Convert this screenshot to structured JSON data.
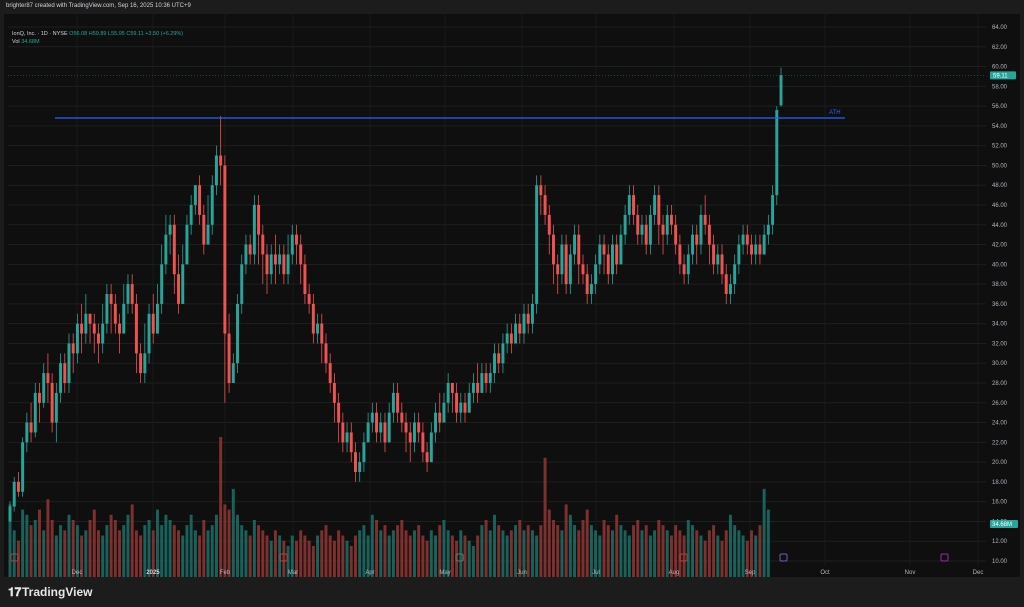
{
  "header": {
    "created_by": "brighter87 created with TradingView.com, Sep 16, 2025 10:36 UTC+9"
  },
  "legend": {
    "symbol": "IonQ, Inc. · 1D · NYSE",
    "ohlc": "O56.08 H59.89 L55.95 C59.11 +3.50 (+6.29%)",
    "volume_label": "Vol",
    "volume_value": "34.68M"
  },
  "price_badge": "59.11",
  "volume_badge": "34.68M",
  "ath_label": "ATH",
  "footer": {
    "logo_text": "TradingView"
  },
  "colors": {
    "up": "#26a69a",
    "down": "#ef5350",
    "ath_line": "#2962ff",
    "background": "#0f0f0f"
  },
  "chart_data": {
    "type": "candlestick",
    "y_ticks": [
      "64.00",
      "62.00",
      "60.00",
      "58.00",
      "56.00",
      "54.00",
      "52.00",
      "50.00",
      "48.00",
      "46.00",
      "44.00",
      "42.00",
      "40.00",
      "38.00",
      "36.00",
      "34.00",
      "32.00",
      "30.00",
      "28.00",
      "26.00",
      "24.00",
      "22.00",
      "20.00",
      "18.00",
      "16.00",
      "14.00",
      "12.00",
      "10.00"
    ],
    "y_range": [
      10,
      64
    ],
    "x_ticks": [
      {
        "label": "Dec",
        "bold": false
      },
      {
        "label": "2025",
        "bold": true
      },
      {
        "label": "Feb",
        "bold": false
      },
      {
        "label": "Mar",
        "bold": false
      },
      {
        "label": "Apr",
        "bold": false
      },
      {
        "label": "May",
        "bold": false
      },
      {
        "label": "Jun",
        "bold": false
      },
      {
        "label": "Jul",
        "bold": false
      },
      {
        "label": "Aug",
        "bold": false
      },
      {
        "label": "Sep",
        "bold": false
      },
      {
        "label": "Oct",
        "bold": false
      },
      {
        "label": "Nov",
        "bold": false
      },
      {
        "label": "Dec",
        "bold": false
      }
    ],
    "ath_level": 54.8,
    "last_price": 59.11,
    "candles": [
      [
        14,
        15.5,
        14,
        16
      ],
      [
        15.5,
        18,
        15,
        18.5
      ],
      [
        18,
        17,
        16.5,
        19
      ],
      [
        17,
        22,
        16.5,
        22.5
      ],
      [
        22,
        24,
        21,
        25
      ],
      [
        24,
        23,
        22,
        26
      ],
      [
        23,
        27,
        22.5,
        28
      ],
      [
        27,
        26,
        24,
        28
      ],
      [
        26,
        29,
        25.5,
        30
      ],
      [
        29,
        28,
        26,
        31
      ],
      [
        28,
        24,
        23,
        29
      ],
      [
        24,
        27,
        22,
        28
      ],
      [
        27,
        30,
        26,
        31
      ],
      [
        30,
        28,
        27,
        31
      ],
      [
        28,
        32,
        27,
        33
      ],
      [
        32,
        31,
        29,
        33
      ],
      [
        31,
        34,
        30,
        35
      ],
      [
        34,
        33,
        31,
        36
      ],
      [
        33,
        35,
        32,
        37
      ],
      [
        35,
        34,
        32,
        35
      ],
      [
        34,
        33,
        31,
        35
      ],
      [
        33,
        32,
        30,
        34
      ],
      [
        32,
        34,
        31,
        36
      ],
      [
        34,
        37,
        33,
        38
      ],
      [
        37,
        36,
        33,
        38
      ],
      [
        36,
        34,
        33,
        37
      ],
      [
        34,
        33,
        31,
        35
      ],
      [
        33,
        36,
        33,
        38
      ],
      [
        36,
        38,
        35,
        39
      ],
      [
        38,
        36,
        35,
        39
      ],
      [
        36,
        31,
        29,
        37
      ],
      [
        31,
        29,
        28,
        32
      ],
      [
        29,
        31,
        28,
        34
      ],
      [
        31,
        35,
        30,
        36
      ],
      [
        35,
        33,
        32,
        37
      ],
      [
        33,
        36,
        33,
        38
      ],
      [
        36,
        40,
        35,
        42
      ],
      [
        40,
        43,
        39,
        45
      ],
      [
        43,
        44,
        41,
        45
      ],
      [
        44,
        39,
        37,
        45
      ],
      [
        39,
        36,
        35,
        41
      ],
      [
        36,
        40,
        36,
        42
      ],
      [
        40,
        44,
        40,
        45
      ],
      [
        44,
        46,
        43,
        47
      ],
      [
        46,
        48,
        45,
        48
      ],
      [
        48,
        45,
        44,
        49
      ],
      [
        45,
        42,
        41,
        46
      ],
      [
        42,
        44,
        42,
        47
      ],
      [
        44,
        48,
        43,
        49
      ],
      [
        48,
        51,
        47,
        52
      ],
      [
        51,
        50,
        48,
        55
      ],
      [
        50,
        33,
        26,
        51
      ],
      [
        33,
        28,
        27,
        35
      ],
      [
        28,
        30,
        28,
        31
      ],
      [
        30,
        36,
        29,
        37
      ],
      [
        36,
        40,
        35,
        41
      ],
      [
        40,
        42,
        39,
        43
      ],
      [
        42,
        41,
        40,
        43
      ],
      [
        41,
        46,
        40,
        47
      ],
      [
        46,
        43,
        40,
        47
      ],
      [
        43,
        41,
        38,
        44
      ],
      [
        41,
        39,
        37,
        42
      ],
      [
        39,
        41,
        38,
        42
      ],
      [
        41,
        40,
        38,
        43
      ],
      [
        40,
        41,
        39,
        42
      ],
      [
        41,
        39,
        38,
        42
      ],
      [
        39,
        41,
        38,
        43
      ],
      [
        41,
        43,
        40,
        44
      ],
      [
        43,
        42,
        40,
        44
      ],
      [
        42,
        40,
        38,
        43
      ],
      [
        40,
        37,
        36,
        41
      ],
      [
        37,
        36,
        35,
        38
      ],
      [
        36,
        33,
        32,
        37
      ],
      [
        33,
        34,
        32,
        35
      ],
      [
        34,
        32,
        30,
        35
      ],
      [
        32,
        30,
        29,
        33
      ],
      [
        30,
        28,
        27,
        31
      ],
      [
        28,
        26,
        24,
        29
      ],
      [
        26,
        24,
        22,
        27
      ],
      [
        24,
        22,
        21,
        25
      ],
      [
        22,
        23,
        21,
        24
      ],
      [
        23,
        21,
        20,
        24
      ],
      [
        21,
        19,
        18,
        22
      ],
      [
        19,
        20,
        18,
        21
      ],
      [
        20,
        22,
        19,
        23
      ],
      [
        22,
        24,
        22,
        25
      ],
      [
        24,
        25,
        23,
        26
      ],
      [
        25,
        23,
        22,
        26
      ],
      [
        23,
        24,
        22,
        25
      ],
      [
        24,
        22,
        21,
        25
      ],
      [
        22,
        25,
        22,
        26
      ],
      [
        25,
        27,
        24,
        28
      ],
      [
        27,
        25,
        24,
        28
      ],
      [
        25,
        24,
        23,
        26
      ],
      [
        24,
        23,
        21,
        25
      ],
      [
        23,
        22,
        20,
        24
      ],
      [
        22,
        24,
        21,
        25
      ],
      [
        24,
        23,
        22,
        25
      ],
      [
        23,
        21,
        20,
        24
      ],
      [
        21,
        20,
        19,
        22
      ],
      [
        20,
        23,
        20,
        24
      ],
      [
        23,
        25,
        22,
        26
      ],
      [
        25,
        24,
        23,
        27
      ],
      [
        24,
        26,
        24,
        27
      ],
      [
        26,
        28,
        25,
        29
      ],
      [
        28,
        27,
        25,
        28
      ],
      [
        27,
        25,
        24,
        28
      ],
      [
        25,
        26,
        24,
        27
      ],
      [
        26,
        25,
        24,
        27
      ],
      [
        25,
        27,
        25,
        28
      ],
      [
        27,
        28,
        26,
        29
      ],
      [
        28,
        27,
        26,
        30
      ],
      [
        27,
        29,
        27,
        30
      ],
      [
        29,
        28,
        27,
        30
      ],
      [
        28,
        29,
        27,
        30
      ],
      [
        29,
        31,
        28,
        32
      ],
      [
        31,
        30,
        29,
        32
      ],
      [
        30,
        32,
        29,
        33
      ],
      [
        32,
        33,
        31,
        34
      ],
      [
        33,
        32,
        31,
        34
      ],
      [
        32,
        34,
        32,
        35
      ],
      [
        34,
        33,
        32,
        35
      ],
      [
        33,
        35,
        32,
        36
      ],
      [
        35,
        34,
        33,
        36
      ],
      [
        34,
        36,
        33,
        37
      ],
      [
        36,
        48,
        35,
        49
      ],
      [
        48,
        47,
        45,
        49
      ],
      [
        47,
        45,
        44,
        48
      ],
      [
        45,
        43,
        41,
        46
      ],
      [
        43,
        40,
        38,
        44
      ],
      [
        40,
        39,
        37,
        41
      ],
      [
        39,
        42,
        38,
        43
      ],
      [
        42,
        38,
        37,
        43
      ],
      [
        38,
        41,
        37,
        42
      ],
      [
        41,
        43,
        40,
        44
      ],
      [
        43,
        40,
        38,
        44
      ],
      [
        40,
        39,
        38,
        41
      ],
      [
        39,
        37,
        36,
        40
      ],
      [
        37,
        38,
        36,
        39
      ],
      [
        38,
        40,
        37,
        41
      ],
      [
        40,
        42,
        39,
        43
      ],
      [
        42,
        41,
        39,
        43
      ],
      [
        41,
        39,
        38,
        42
      ],
      [
        39,
        42,
        38,
        43
      ],
      [
        42,
        40,
        39,
        43
      ],
      [
        40,
        43,
        40,
        44
      ],
      [
        43,
        45,
        42,
        46
      ],
      [
        45,
        47,
        44,
        48
      ],
      [
        47,
        45,
        44,
        48
      ],
      [
        45,
        43,
        42,
        46
      ],
      [
        43,
        44,
        42,
        45
      ],
      [
        44,
        42,
        41,
        45
      ],
      [
        42,
        45,
        41,
        46
      ],
      [
        45,
        47,
        44,
        48
      ],
      [
        47,
        44,
        42,
        48
      ],
      [
        44,
        43,
        41,
        45
      ],
      [
        43,
        45,
        42,
        46
      ],
      [
        45,
        44,
        43,
        46
      ],
      [
        44,
        42,
        41,
        45
      ],
      [
        42,
        40,
        39,
        43
      ],
      [
        40,
        39,
        38,
        41
      ],
      [
        39,
        41,
        38,
        42
      ],
      [
        41,
        43,
        40,
        44
      ],
      [
        43,
        42,
        40,
        44
      ],
      [
        42,
        45,
        41,
        46
      ],
      [
        45,
        44,
        43,
        47
      ],
      [
        44,
        42,
        40,
        45
      ],
      [
        42,
        40,
        39,
        43
      ],
      [
        40,
        41,
        39,
        42
      ],
      [
        41,
        39,
        38,
        42
      ],
      [
        39,
        37,
        36,
        40
      ],
      [
        37,
        38,
        36,
        39
      ],
      [
        38,
        40,
        37,
        41
      ],
      [
        40,
        42,
        39,
        43
      ],
      [
        42,
        43,
        41,
        44
      ],
      [
        43,
        42,
        41,
        44
      ],
      [
        42,
        41,
        40,
        43
      ],
      [
        41,
        42,
        40,
        43
      ],
      [
        42,
        41,
        40,
        43
      ],
      [
        41,
        43,
        41,
        44
      ],
      [
        43,
        44,
        42,
        45
      ],
      [
        44,
        47,
        43,
        48
      ],
      [
        47,
        55.6,
        46,
        56
      ],
      [
        56.08,
        59.11,
        55.95,
        59.89
      ]
    ],
    "volumes": [
      14,
      9,
      7,
      13,
      12,
      10,
      11,
      13,
      9,
      15,
      11,
      8,
      10,
      9,
      12,
      11,
      10,
      8,
      9,
      11,
      13,
      9,
      8,
      10,
      12,
      11,
      9,
      10,
      12,
      14,
      9,
      8,
      10,
      11,
      9,
      13,
      10,
      12,
      11,
      10,
      9,
      8,
      10,
      12,
      9,
      8,
      11,
      9,
      10,
      12,
      27,
      14,
      13,
      17,
      12,
      10,
      9,
      8,
      11,
      10,
      9,
      8,
      7,
      9,
      8,
      7,
      6,
      8,
      7,
      9,
      8,
      7,
      6,
      8,
      9,
      10,
      8,
      7,
      9,
      8,
      7,
      6,
      8,
      9,
      10,
      8,
      12,
      11,
      9,
      10,
      8,
      9,
      10,
      11,
      9,
      8,
      9,
      10,
      8,
      7,
      9,
      8,
      10,
      11,
      9,
      8,
      7,
      9,
      8,
      7,
      6,
      8,
      10,
      11,
      9,
      12,
      10,
      9,
      8,
      9,
      10,
      11,
      9,
      10,
      9,
      8,
      10,
      23,
      13,
      11,
      10,
      9,
      14,
      12,
      10,
      9,
      11,
      13,
      10,
      9,
      8,
      11,
      10,
      9,
      12,
      10,
      9,
      8,
      10,
      11,
      9,
      10,
      8,
      9,
      11,
      10,
      9,
      8,
      10,
      9,
      8,
      11,
      10,
      9,
      8,
      7,
      9,
      10,
      8,
      7,
      9,
      12,
      10,
      9,
      8,
      7,
      9,
      8,
      10,
      17,
      13
    ],
    "vol_max": 27
  }
}
